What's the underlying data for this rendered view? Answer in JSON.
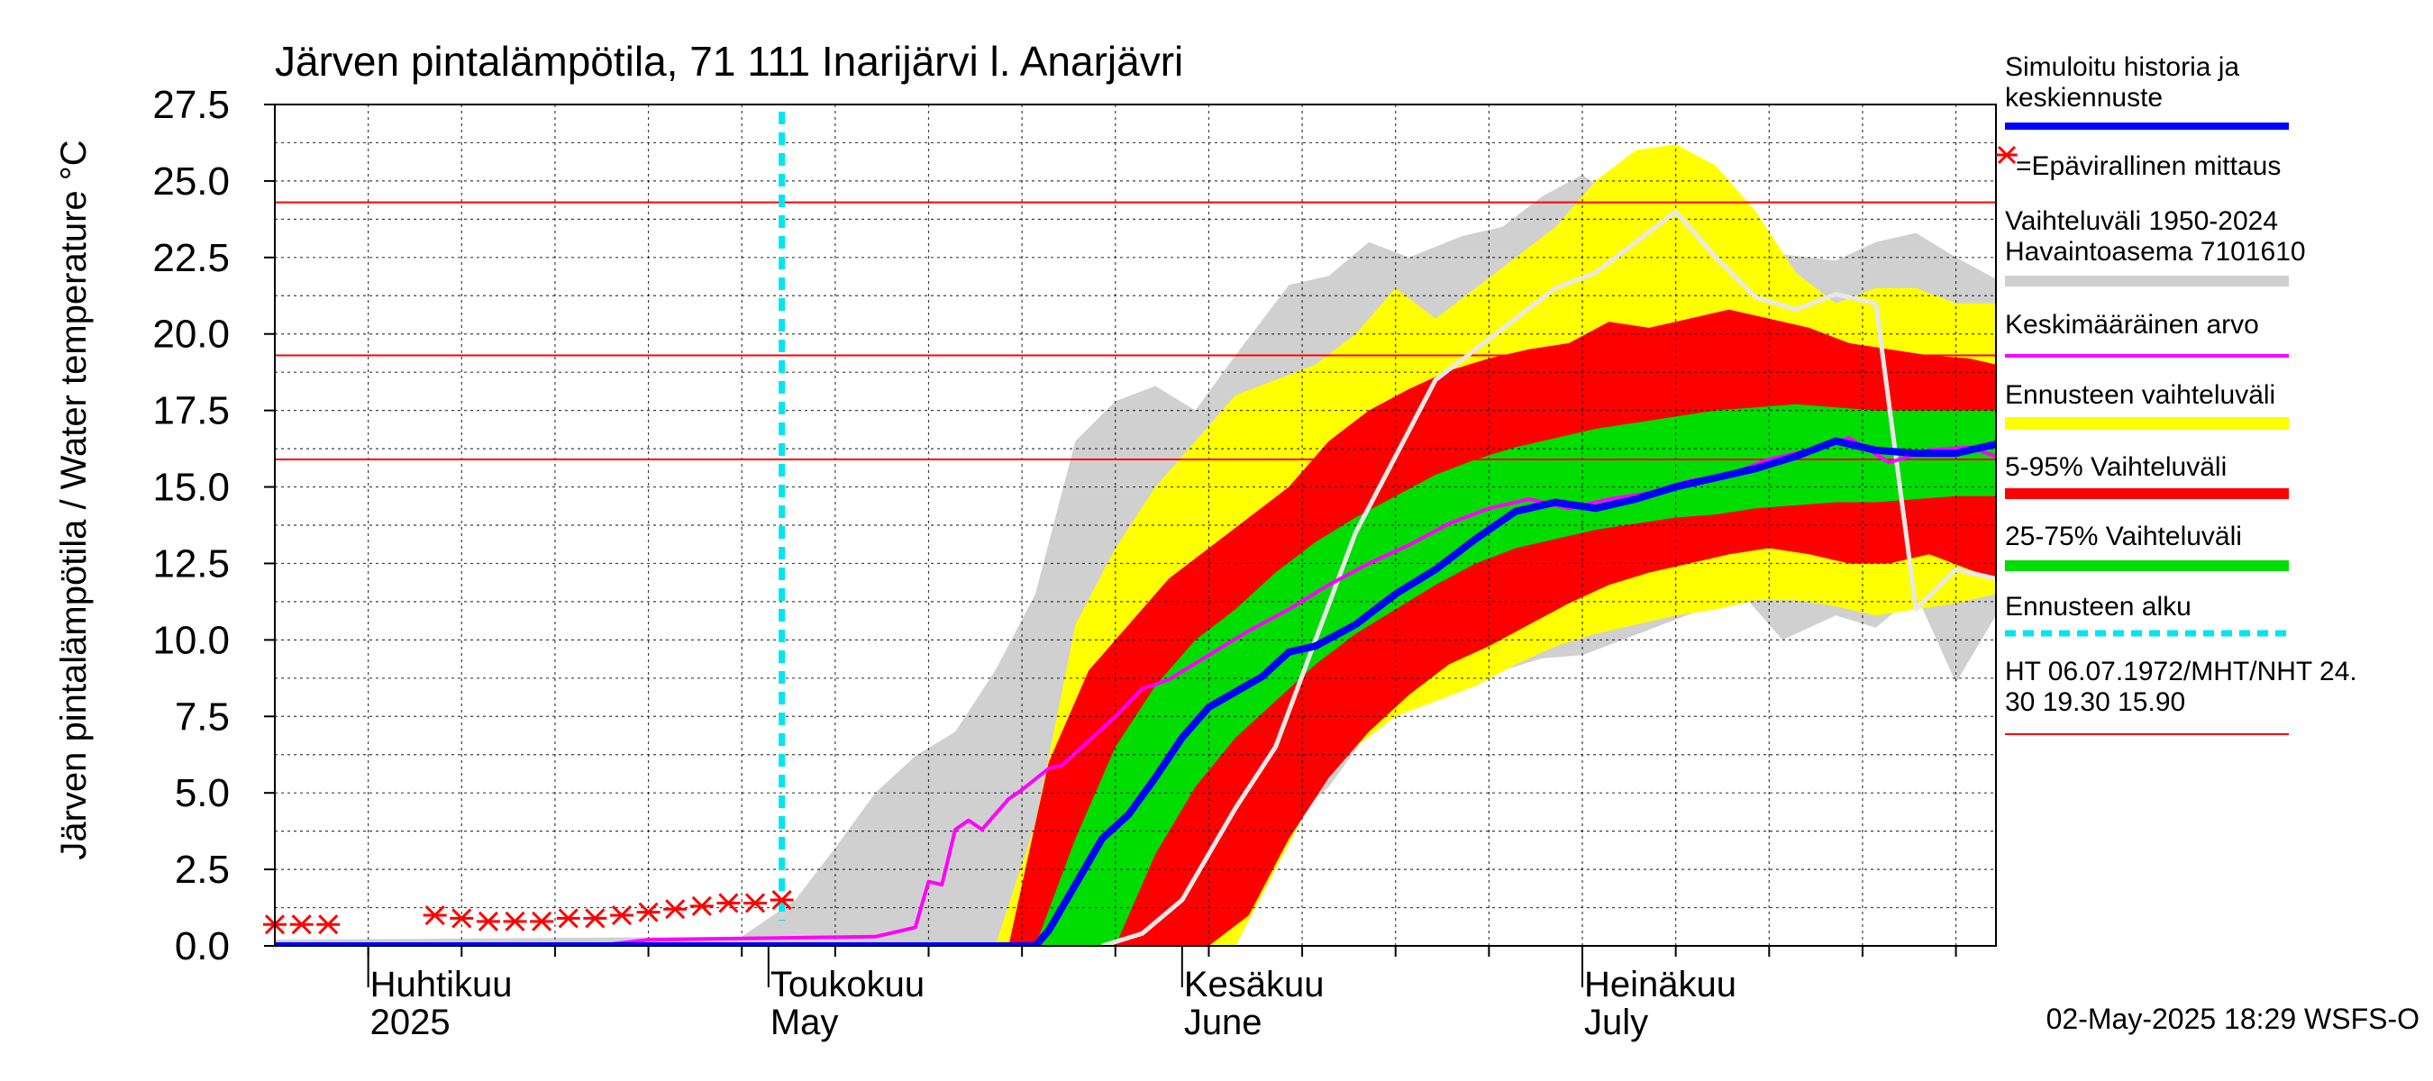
{
  "chart_data": {
    "type": "area",
    "title": "Järven pintalämpötila, 71 111 Inarijärvi l. Anarjävri",
    "ylabel": "Järven pintalämpötila / Water temperature °C",
    "xlabel": "",
    "ylim": [
      0,
      27.5
    ],
    "yticks": [
      "0.0",
      "2.5",
      "5.0",
      "7.5",
      "10.0",
      "12.5",
      "15.0",
      "17.5",
      "20.0",
      "22.5",
      "25.0",
      "27.5"
    ],
    "x_range": [
      "2025-03-25",
      "2025-08-01"
    ],
    "x_axis_labels": [
      {
        "date": "2025-04-01",
        "line1": "Huhtikuu",
        "line2": "2025"
      },
      {
        "date": "2025-05-01",
        "line1": "Toukokuu",
        "line2": "May"
      },
      {
        "date": "2025-06-01",
        "line1": "Kesäkuu",
        "line2": "June"
      },
      {
        "date": "2025-07-01",
        "line1": "Heinäkuu",
        "line2": "July"
      }
    ],
    "grid": true,
    "legend_position": "right",
    "legend": [
      {
        "label": "Simuloitu historia ja keskiennuste",
        "color": "#0000ff"
      },
      {
        "label": "=Epävirallinen mittaus",
        "color": "#ff0000",
        "symbol": "*"
      },
      {
        "label": "Vaihteluväli 1950-2024 Havaintoasema 7101610",
        "color": "#d0d0d0"
      },
      {
        "label": "Keskimääräinen arvo",
        "color": "#ff00ff"
      },
      {
        "label": "Ennusteen vaihteluväli",
        "color": "#ffff00"
      },
      {
        "label": "5-95% Vaihteluväli",
        "color": "#ff0000"
      },
      {
        "label": "25-75% Vaihteluväli",
        "color": "#00dd00"
      },
      {
        "label": "Ennusteen alku",
        "color": "#00e5ee"
      },
      {
        "label": "HT 06.07.1972/MHT/NHT 24.30 19.30 15.90",
        "color": "#ff0000"
      }
    ],
    "reference_lines": [
      {
        "name": "HT",
        "y": 24.3
      },
      {
        "name": "MHT",
        "y": 19.3
      },
      {
        "name": "NHT",
        "y": 15.9
      }
    ],
    "forecast_start": "2025-05-02",
    "series": [
      {
        "name": "Vaihteluväli 1950-2024 Havaintoasema 7101610",
        "type": "band",
        "color": "#d0d0d0",
        "x": [
          "2025-03-25",
          "2025-04-29",
          "2025-05-03",
          "2025-05-06",
          "2025-05-09",
          "2025-05-12",
          "2025-05-15",
          "2025-05-18",
          "2025-05-21",
          "2025-05-24",
          "2025-05-27",
          "2025-05-30",
          "2025-06-02",
          "2025-06-05",
          "2025-06-09",
          "2025-06-12",
          "2025-06-15",
          "2025-06-18",
          "2025-06-22",
          "2025-06-25",
          "2025-06-28",
          "2025-07-01",
          "2025-07-04",
          "2025-07-07",
          "2025-07-10",
          "2025-07-13",
          "2025-07-16",
          "2025-07-20",
          "2025-07-23",
          "2025-07-26",
          "2025-07-29",
          "2025-08-01"
        ],
        "low": [
          0,
          0,
          0,
          0,
          0,
          0,
          0,
          0,
          0,
          0,
          0,
          0,
          0,
          1.5,
          4,
          5.2,
          7,
          8,
          8.5,
          9,
          9.4,
          9.5,
          10,
          10.5,
          11,
          11.5,
          10,
          10.8,
          10.4,
          11.5,
          8.6,
          10.8
        ],
        "high": [
          0.2,
          0.3,
          1.5,
          3.2,
          5,
          6.2,
          7,
          9,
          11.5,
          16.5,
          17.8,
          18.3,
          17.5,
          19.3,
          21.6,
          21.9,
          23,
          22.5,
          23.2,
          23.5,
          24.5,
          25.2,
          24.3,
          23.6,
          23,
          22.8,
          22.6,
          22.4,
          23,
          23.3,
          22.5,
          21.8
        ]
      },
      {
        "name": "Ennusteen vaihteluväli",
        "type": "band",
        "color": "#ffff00",
        "x": [
          "2025-05-18",
          "2025-05-21",
          "2025-05-24",
          "2025-05-27",
          "2025-05-30",
          "2025-06-02",
          "2025-06-05",
          "2025-06-08",
          "2025-06-11",
          "2025-06-14",
          "2025-06-17",
          "2025-06-20",
          "2025-06-23",
          "2025-06-26",
          "2025-06-29",
          "2025-07-02",
          "2025-07-05",
          "2025-07-08",
          "2025-07-11",
          "2025-07-14",
          "2025-07-17",
          "2025-07-20",
          "2025-07-23",
          "2025-07-26",
          "2025-07-29",
          "2025-08-01"
        ],
        "low": [
          0,
          0,
          0,
          0,
          0,
          0,
          0,
          2.5,
          5,
          6.5,
          7.5,
          8,
          8.5,
          9.2,
          9.8,
          10.2,
          10.5,
          10.8,
          11,
          11.3,
          11.3,
          11.1,
          10.8,
          11,
          11.2,
          11.5
        ],
        "high": [
          0,
          4,
          10.5,
          13,
          15,
          16.5,
          18,
          18.5,
          19,
          20,
          21.5,
          20.5,
          21.5,
          22.5,
          23.5,
          25,
          26,
          26.2,
          25.5,
          24,
          22,
          21,
          21.5,
          21.5,
          21,
          21
        ]
      },
      {
        "name": "5-95% Vaihteluväli",
        "type": "band",
        "color": "#ff0000",
        "x": [
          "2025-05-19",
          "2025-05-22",
          "2025-05-25",
          "2025-05-28",
          "2025-05-31",
          "2025-06-03",
          "2025-06-06",
          "2025-06-09",
          "2025-06-12",
          "2025-06-15",
          "2025-06-18",
          "2025-06-21",
          "2025-06-24",
          "2025-06-27",
          "2025-06-30",
          "2025-07-03",
          "2025-07-06",
          "2025-07-09",
          "2025-07-12",
          "2025-07-15",
          "2025-07-18",
          "2025-07-21",
          "2025-07-24",
          "2025-07-27",
          "2025-07-30",
          "2025-08-01"
        ],
        "low": [
          0,
          0,
          0,
          0,
          0,
          0,
          1,
          3.5,
          5.5,
          7,
          8.2,
          9.2,
          9.8,
          10.5,
          11.2,
          11.8,
          12.2,
          12.5,
          12.8,
          13,
          12.8,
          12.5,
          12.5,
          12.8,
          12.3,
          12
        ],
        "high": [
          0,
          6,
          9,
          10.5,
          12,
          13,
          14,
          15,
          16.5,
          17.5,
          18.2,
          18.8,
          19.2,
          19.5,
          19.7,
          20.4,
          20.2,
          20.5,
          20.8,
          20.5,
          20.2,
          19.7,
          19.5,
          19.3,
          19.2,
          19
        ]
      },
      {
        "name": "25-75% Vaihteluväli",
        "type": "band",
        "color": "#00dd00",
        "x": [
          "2025-05-21",
          "2025-05-24",
          "2025-05-27",
          "2025-05-30",
          "2025-06-02",
          "2025-06-05",
          "2025-06-08",
          "2025-06-11",
          "2025-06-14",
          "2025-06-17",
          "2025-06-20",
          "2025-06-23",
          "2025-06-26",
          "2025-06-29",
          "2025-07-02",
          "2025-07-05",
          "2025-07-08",
          "2025-07-11",
          "2025-07-14",
          "2025-07-17",
          "2025-07-20",
          "2025-07-23",
          "2025-07-26",
          "2025-07-29",
          "2025-08-01"
        ],
        "low": [
          0,
          0,
          0,
          3,
          5.2,
          6.8,
          8,
          9.2,
          10.2,
          11,
          11.8,
          12.5,
          13,
          13.3,
          13.6,
          13.8,
          14,
          14.1,
          14.3,
          14.4,
          14.5,
          14.5,
          14.6,
          14.7,
          14.7
        ],
        "high": [
          0,
          3.5,
          6.5,
          8.5,
          10,
          11,
          12.2,
          13.2,
          14,
          14.7,
          15.4,
          15.9,
          16.3,
          16.6,
          16.9,
          17.1,
          17.3,
          17.5,
          17.6,
          17.7,
          17.6,
          17.5,
          17.5,
          17.5,
          17.5
        ]
      },
      {
        "name": "Keskimääräinen arvo",
        "type": "line",
        "color": "#ff00ff",
        "x": [
          "2025-03-25",
          "2025-04-18",
          "2025-04-22",
          "2025-05-09",
          "2025-05-11",
          "2025-05-12",
          "2025-05-13",
          "2025-05-14",
          "2025-05-15",
          "2025-05-16",
          "2025-05-17",
          "2025-05-19",
          "2025-05-20",
          "2025-05-22",
          "2025-05-23",
          "2025-05-25",
          "2025-05-27",
          "2025-05-29",
          "2025-05-31",
          "2025-06-03",
          "2025-06-06",
          "2025-06-09",
          "2025-06-12",
          "2025-06-15",
          "2025-06-18",
          "2025-06-21",
          "2025-06-24",
          "2025-06-27",
          "2025-06-30",
          "2025-07-03",
          "2025-07-06",
          "2025-07-09",
          "2025-07-12",
          "2025-07-15",
          "2025-07-18",
          "2025-07-21",
          "2025-07-24",
          "2025-07-27",
          "2025-07-30",
          "2025-08-01"
        ],
        "y": [
          0,
          0,
          0.2,
          0.3,
          0.5,
          0.6,
          2.1,
          2.0,
          3.8,
          4.1,
          3.8,
          4.8,
          5.1,
          5.8,
          5.9,
          6.7,
          7.5,
          8.4,
          8.7,
          9.5,
          10.3,
          11.0,
          11.8,
          12.5,
          13.1,
          13.8,
          14.3,
          14.6,
          14.3,
          14.6,
          14.8,
          15.2,
          15.4,
          15.9,
          16.2,
          16.6,
          15.8,
          16.2,
          16.3,
          16.0
        ]
      },
      {
        "name": "Simuloitu historia ja keskiennuste",
        "type": "line",
        "color": "#0000ff",
        "x": [
          "2025-03-25",
          "2025-05-21",
          "2025-05-22",
          "2025-05-24",
          "2025-05-26",
          "2025-05-28",
          "2025-05-30",
          "2025-06-01",
          "2025-06-03",
          "2025-06-05",
          "2025-06-07",
          "2025-06-09",
          "2025-06-11",
          "2025-06-14",
          "2025-06-17",
          "2025-06-20",
          "2025-06-23",
          "2025-06-26",
          "2025-06-29",
          "2025-07-02",
          "2025-07-05",
          "2025-07-08",
          "2025-07-11",
          "2025-07-14",
          "2025-07-17",
          "2025-07-20",
          "2025-07-23",
          "2025-07-26",
          "2025-07-29",
          "2025-08-01"
        ],
        "y": [
          0,
          0,
          0.5,
          2,
          3.5,
          4.3,
          5.5,
          6.8,
          7.8,
          8.3,
          8.8,
          9.6,
          9.8,
          10.5,
          11.5,
          12.3,
          13.3,
          14.2,
          14.5,
          14.3,
          14.6,
          15.0,
          15.3,
          15.6,
          16.0,
          16.5,
          16.2,
          16.1,
          16.1,
          16.4
        ]
      },
      {
        "name": "Ennusteen 1950-2024 keskiarvo",
        "type": "line",
        "color": "#e8e8e8",
        "x": [
          "2025-05-26",
          "2025-05-29",
          "2025-06-01",
          "2025-06-03",
          "2025-06-05",
          "2025-06-08",
          "2025-06-11",
          "2025-06-14",
          "2025-06-17",
          "2025-06-20",
          "2025-06-23",
          "2025-06-26",
          "2025-06-29",
          "2025-07-02",
          "2025-07-05",
          "2025-07-08",
          "2025-07-11",
          "2025-07-14",
          "2025-07-17",
          "2025-07-20",
          "2025-07-23",
          "2025-07-26",
          "2025-07-29",
          "2025-08-01"
        ],
        "y": [
          0,
          0.4,
          1.5,
          3.0,
          4.5,
          6.5,
          10,
          13.5,
          16,
          18.5,
          19.5,
          20.5,
          21.5,
          22,
          23,
          24,
          22.5,
          21.2,
          20.8,
          21.3,
          21,
          11,
          12.3,
          12
        ]
      }
    ],
    "unofficial_measurements": {
      "name": "Epävirallinen mittaus",
      "color": "#ff0000",
      "x": [
        "2025-03-25",
        "2025-03-27",
        "2025-03-29",
        "2025-04-06",
        "2025-04-08",
        "2025-04-10",
        "2025-04-12",
        "2025-04-14",
        "2025-04-16",
        "2025-04-18",
        "2025-04-20",
        "2025-04-22",
        "2025-04-24",
        "2025-04-26",
        "2025-04-28",
        "2025-04-30",
        "2025-05-02"
      ],
      "y": [
        0.7,
        0.7,
        0.7,
        1.0,
        0.9,
        0.8,
        0.8,
        0.8,
        0.9,
        0.9,
        1.0,
        1.1,
        1.2,
        1.3,
        1.4,
        1.4,
        1.5
      ]
    },
    "footer": "02-May-2025 18:29 WSFS-O"
  }
}
